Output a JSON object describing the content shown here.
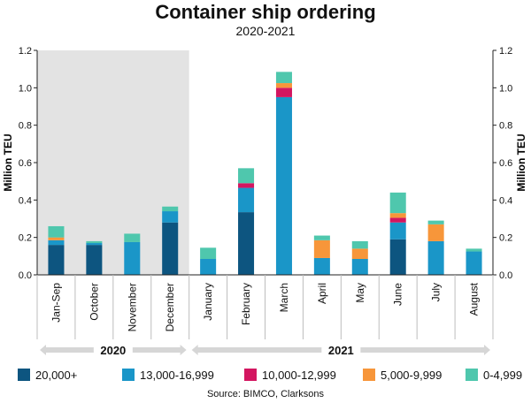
{
  "header": {
    "title": "Container ship ordering",
    "subtitle": "2020-2021"
  },
  "source": "Source: BIMCO, Clarksons",
  "chart_data": {
    "type": "bar",
    "stacked": true,
    "title": "Container ship ordering",
    "subtitle": "2020-2021",
    "ylabel": "Million TEU",
    "ylabel_right": "Million TEU",
    "ylim": [
      0,
      1.2
    ],
    "yticks": [
      "0.0",
      "0.2",
      "0.4",
      "0.6",
      "0.8",
      "1.0",
      "1.2"
    ],
    "categories": [
      "Jan-Sep",
      "October",
      "November",
      "December",
      "January",
      "February",
      "March",
      "April",
      "May",
      "June",
      "July",
      "August"
    ],
    "groups": [
      {
        "label": "2020",
        "categories": [
          "Jan-Sep",
          "October",
          "November",
          "December"
        ],
        "shaded": true
      },
      {
        "label": "2021",
        "categories": [
          "January",
          "February",
          "March",
          "April",
          "May",
          "June",
          "July",
          "August"
        ],
        "shaded": false
      }
    ],
    "series": [
      {
        "name": "20,000+",
        "color": "#0d5580",
        "values": [
          0.16,
          0.16,
          0,
          0.28,
          0,
          0.335,
          0,
          0,
          0,
          0.19,
          0,
          0
        ]
      },
      {
        "name": "13,000-16,999",
        "color": "#1a96c8",
        "values": [
          0.025,
          0.01,
          0.175,
          0.06,
          0.085,
          0.13,
          0.95,
          0.09,
          0.085,
          0.09,
          0.18,
          0.125
        ]
      },
      {
        "name": "10,000-12,999",
        "color": "#d31660",
        "values": [
          0,
          0,
          0,
          0,
          0,
          0.025,
          0.05,
          0,
          0,
          0.025,
          0,
          0
        ]
      },
      {
        "name": "5,000-9,999",
        "color": "#f7963a",
        "values": [
          0.015,
          0,
          0,
          0,
          0,
          0,
          0.025,
          0.095,
          0.055,
          0.025,
          0.09,
          0
        ]
      },
      {
        "name": "0-4,999",
        "color": "#4fc7ad",
        "values": [
          0.06,
          0.01,
          0.045,
          0.025,
          0.06,
          0.08,
          0.06,
          0.025,
          0.04,
          0.11,
          0.02,
          0.015
        ]
      }
    ],
    "grid": false,
    "legend_position": "bottom"
  }
}
